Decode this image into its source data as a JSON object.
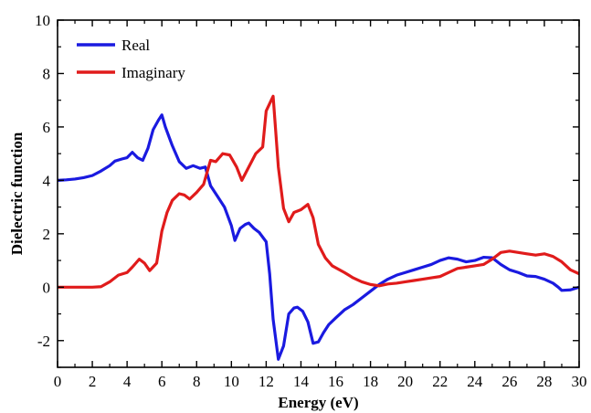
{
  "chart_data": {
    "type": "line",
    "xlabel": "Energy (eV)",
    "ylabel": "Dielectric function",
    "xlim": [
      0,
      30
    ],
    "ylim": [
      -3,
      10
    ],
    "x_ticks": [
      0,
      2,
      4,
      6,
      8,
      10,
      12,
      14,
      16,
      18,
      20,
      22,
      24,
      26,
      28,
      30
    ],
    "y_ticks": [
      -2,
      0,
      2,
      4,
      6,
      8,
      10
    ],
    "grid": false,
    "legend_position": "top-left",
    "series": [
      {
        "name": "Real",
        "color": "#1a1ae0",
        "points": [
          [
            0,
            4.0
          ],
          [
            0.5,
            4.02
          ],
          [
            1,
            4.05
          ],
          [
            1.5,
            4.1
          ],
          [
            2,
            4.18
          ],
          [
            2.5,
            4.35
          ],
          [
            3,
            4.55
          ],
          [
            3.3,
            4.72
          ],
          [
            3.7,
            4.8
          ],
          [
            4,
            4.85
          ],
          [
            4.3,
            5.05
          ],
          [
            4.6,
            4.85
          ],
          [
            4.9,
            4.75
          ],
          [
            5.2,
            5.2
          ],
          [
            5.5,
            5.9
          ],
          [
            5.8,
            6.25
          ],
          [
            6.0,
            6.45
          ],
          [
            6.2,
            6.0
          ],
          [
            6.6,
            5.3
          ],
          [
            7.0,
            4.7
          ],
          [
            7.4,
            4.45
          ],
          [
            7.8,
            4.55
          ],
          [
            8.2,
            4.45
          ],
          [
            8.5,
            4.5
          ],
          [
            8.8,
            3.8
          ],
          [
            9.2,
            3.4
          ],
          [
            9.6,
            3.0
          ],
          [
            10.0,
            2.3
          ],
          [
            10.2,
            1.75
          ],
          [
            10.5,
            2.2
          ],
          [
            10.8,
            2.35
          ],
          [
            11.0,
            2.4
          ],
          [
            11.3,
            2.2
          ],
          [
            11.6,
            2.05
          ],
          [
            12.0,
            1.7
          ],
          [
            12.2,
            0.5
          ],
          [
            12.4,
            -1.2
          ],
          [
            12.7,
            -2.7
          ],
          [
            13.0,
            -2.2
          ],
          [
            13.3,
            -1.0
          ],
          [
            13.6,
            -0.78
          ],
          [
            13.8,
            -0.75
          ],
          [
            14.1,
            -0.9
          ],
          [
            14.4,
            -1.3
          ],
          [
            14.7,
            -2.1
          ],
          [
            15.0,
            -2.05
          ],
          [
            15.3,
            -1.7
          ],
          [
            15.6,
            -1.4
          ],
          [
            16.0,
            -1.15
          ],
          [
            16.5,
            -0.85
          ],
          [
            17.0,
            -0.65
          ],
          [
            17.5,
            -0.4
          ],
          [
            18.0,
            -0.15
          ],
          [
            18.5,
            0.1
          ],
          [
            19.0,
            0.3
          ],
          [
            19.5,
            0.45
          ],
          [
            20.0,
            0.55
          ],
          [
            20.5,
            0.65
          ],
          [
            21.0,
            0.75
          ],
          [
            21.5,
            0.85
          ],
          [
            22.0,
            1.0
          ],
          [
            22.5,
            1.1
          ],
          [
            23.0,
            1.05
          ],
          [
            23.5,
            0.95
          ],
          [
            24.0,
            1.0
          ],
          [
            24.5,
            1.12
          ],
          [
            25.0,
            1.1
          ],
          [
            25.5,
            0.85
          ],
          [
            26.0,
            0.65
          ],
          [
            26.5,
            0.55
          ],
          [
            27.0,
            0.42
          ],
          [
            27.5,
            0.4
          ],
          [
            28.0,
            0.3
          ],
          [
            28.5,
            0.15
          ],
          [
            28.8,
            0.0
          ],
          [
            29.0,
            -0.12
          ],
          [
            29.5,
            -0.1
          ],
          [
            30.0,
            0.0
          ]
        ]
      },
      {
        "name": "Imaginary",
        "color": "#e01b1b",
        "points": [
          [
            0,
            0.0
          ],
          [
            1,
            0.0
          ],
          [
            2,
            0.0
          ],
          [
            2.5,
            0.02
          ],
          [
            3.0,
            0.2
          ],
          [
            3.5,
            0.45
          ],
          [
            4.0,
            0.55
          ],
          [
            4.3,
            0.75
          ],
          [
            4.7,
            1.05
          ],
          [
            5.0,
            0.9
          ],
          [
            5.3,
            0.62
          ],
          [
            5.7,
            0.9
          ],
          [
            6.0,
            2.1
          ],
          [
            6.3,
            2.8
          ],
          [
            6.6,
            3.25
          ],
          [
            7.0,
            3.5
          ],
          [
            7.3,
            3.45
          ],
          [
            7.6,
            3.3
          ],
          [
            8.0,
            3.55
          ],
          [
            8.4,
            3.85
          ],
          [
            8.8,
            4.75
          ],
          [
            9.1,
            4.7
          ],
          [
            9.5,
            5.0
          ],
          [
            9.9,
            4.95
          ],
          [
            10.3,
            4.5
          ],
          [
            10.6,
            4.0
          ],
          [
            11.0,
            4.5
          ],
          [
            11.4,
            5.0
          ],
          [
            11.8,
            5.25
          ],
          [
            12.0,
            6.6
          ],
          [
            12.4,
            7.15
          ],
          [
            12.7,
            4.5
          ],
          [
            13.0,
            2.95
          ],
          [
            13.3,
            2.45
          ],
          [
            13.6,
            2.8
          ],
          [
            14.0,
            2.9
          ],
          [
            14.4,
            3.1
          ],
          [
            14.7,
            2.6
          ],
          [
            15.0,
            1.6
          ],
          [
            15.4,
            1.1
          ],
          [
            15.8,
            0.8
          ],
          [
            16.5,
            0.55
          ],
          [
            17.0,
            0.35
          ],
          [
            17.5,
            0.2
          ],
          [
            18.0,
            0.1
          ],
          [
            18.5,
            0.05
          ],
          [
            19.0,
            0.12
          ],
          [
            19.5,
            0.15
          ],
          [
            20.0,
            0.2
          ],
          [
            20.5,
            0.25
          ],
          [
            21.0,
            0.3
          ],
          [
            21.5,
            0.35
          ],
          [
            22.0,
            0.4
          ],
          [
            22.5,
            0.55
          ],
          [
            23.0,
            0.7
          ],
          [
            23.5,
            0.75
          ],
          [
            24.0,
            0.8
          ],
          [
            24.5,
            0.85
          ],
          [
            25.0,
            1.05
          ],
          [
            25.5,
            1.3
          ],
          [
            26.0,
            1.35
          ],
          [
            26.5,
            1.3
          ],
          [
            27.0,
            1.25
          ],
          [
            27.5,
            1.2
          ],
          [
            28.0,
            1.25
          ],
          [
            28.5,
            1.15
          ],
          [
            29.0,
            0.95
          ],
          [
            29.5,
            0.65
          ],
          [
            30.0,
            0.5
          ]
        ]
      }
    ]
  }
}
